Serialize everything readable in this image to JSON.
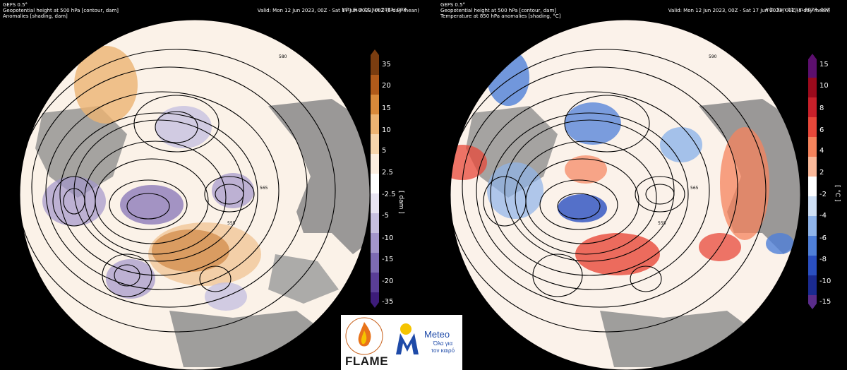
{
  "left_map": {
    "model": "GEFS 0.5°",
    "field_contour": "Geopotential height at 500 hPa [contour, dam]",
    "field_shading": "Anomalies [shading, dam]",
    "init": "Init: Sun 11 Jun 2023, 00Z",
    "valid": "Valid: Mon 12 Jun 2023, 00Z - Sat 17 Jun 2023, 00Z (5-day mean)",
    "colorbar": {
      "unit_label": "[ dam ]",
      "ticks": [
        "35",
        "20",
        "15",
        "10",
        "5",
        "2.5",
        "-2.5",
        "-5",
        "-10",
        "-15",
        "-20",
        "-35"
      ],
      "colors": [
        "#7a3d10",
        "#b05a1a",
        "#d8893a",
        "#ecb372",
        "#f5d4ab",
        "#fbeee0",
        "#ffffff",
        "#e8e4f2",
        "#c7c0e0",
        "#a396cb",
        "#7d6bb3",
        "#5a3e97",
        "#3d1c7a"
      ]
    },
    "contour_labels": [
      "580",
      "555",
      "565",
      "585",
      "590"
    ]
  },
  "right_map": {
    "model": "GEFS 0.5°",
    "field_contour": "Geopotential height at 500 hPa [contour, dam]",
    "field_shading": "Temperature at 850 hPa anomalies [shading, °C]",
    "init": "Init: Sun 11 Jun 2023, 00Z",
    "valid": "Valid: Mon 12 Jun 2023, 00Z - Sat 17 Jun 2023, 00Z (5-day mean)",
    "colorbar": {
      "unit_label": "[ °C ]",
      "ticks": [
        "15",
        "10",
        "8",
        "6",
        "4",
        "2",
        "-2",
        "-4",
        "-6",
        "-8",
        "-10",
        "-15"
      ],
      "colors": [
        "#5c0f6e",
        "#9b0a1c",
        "#c8202a",
        "#e8483a",
        "#f5835c",
        "#fab99a",
        "#ffffff",
        "#cfe0f5",
        "#8fb4ea",
        "#4f7fd8",
        "#2a4fc0",
        "#1a2a90",
        "#5a2c8a"
      ]
    },
    "contour_labels": [
      "590",
      "585",
      "565",
      "555",
      "580"
    ]
  },
  "logos": {
    "flame_text": "FLAME",
    "flame_ring_text": "EXTREME FIRE WEATHER & FIRE BEHAVIOUR",
    "meteo_text": "Meteo",
    "meteo_sub_line1": "Όλα για",
    "meteo_sub_line2": "τον καιρό",
    "colors": {
      "meteo_blue": "#1e4aa8",
      "sun_yellow": "#f5c400",
      "flame_orange": "#e8731a"
    }
  }
}
